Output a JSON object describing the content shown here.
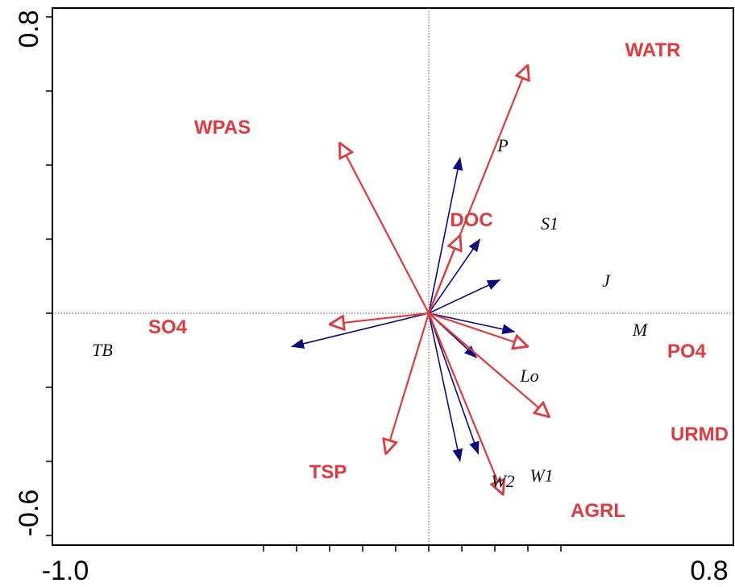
{
  "chart_data": {
    "type": "biplot",
    "title": "",
    "xlabel": "",
    "ylabel": "",
    "xlim": [
      -1.0,
      0.8
    ],
    "ylim": [
      -0.6,
      0.8
    ],
    "x_tick_labels": [
      {
        "value": -1.0,
        "label": "-1.0"
      },
      {
        "value": 0.8,
        "label": "0.8"
      }
    ],
    "y_tick_labels": [
      {
        "value": 0.8,
        "label": "0.8"
      },
      {
        "value": -0.6,
        "label": "-0.6"
      }
    ],
    "x_minor_ticks": [
      -1.0,
      -0.8,
      -0.6,
      -0.4,
      -0.2,
      0.0,
      0.2,
      0.4,
      0.6,
      0.8
    ],
    "y_minor_ticks": [
      -0.6,
      -0.4,
      -0.2,
      0.0,
      0.2,
      0.4,
      0.6,
      0.8
    ],
    "reference_lines": {
      "x": 0,
      "y": 0,
      "style": "dotted"
    },
    "colors": {
      "environment": "#e0393e",
      "species": "#0d0a80",
      "axis": "#000000"
    },
    "environmental_variables": [
      {
        "name": "WATR",
        "x": 0.6,
        "y": 0.67
      },
      {
        "name": "WPAS",
        "x": -0.54,
        "y": 0.46
      },
      {
        "name": "DOC",
        "x": 0.19,
        "y": 0.21
      },
      {
        "name": "SO4",
        "x": -0.6,
        "y": -0.03
      },
      {
        "name": "PO4",
        "x": 0.6,
        "y": -0.09
      },
      {
        "name": "URMD",
        "x": 0.73,
        "y": -0.28
      },
      {
        "name": "TSP",
        "x": -0.26,
        "y": -0.38
      },
      {
        "name": "AGRL",
        "x": 0.45,
        "y": -0.49
      }
    ],
    "species": [
      {
        "name": "P",
        "x": 0.19,
        "y": 0.42
      },
      {
        "name": "S1",
        "x": 0.31,
        "y": 0.2
      },
      {
        "name": "J",
        "x": 0.43,
        "y": 0.09
      },
      {
        "name": "M",
        "x": 0.52,
        "y": -0.05
      },
      {
        "name": "Lo",
        "x": 0.29,
        "y": -0.12
      },
      {
        "name": "TB",
        "x": -0.83,
        "y": -0.09
      },
      {
        "name": "W2",
        "x": 0.19,
        "y": -0.4
      },
      {
        "name": "W1",
        "x": 0.3,
        "y": -0.38
      }
    ]
  }
}
